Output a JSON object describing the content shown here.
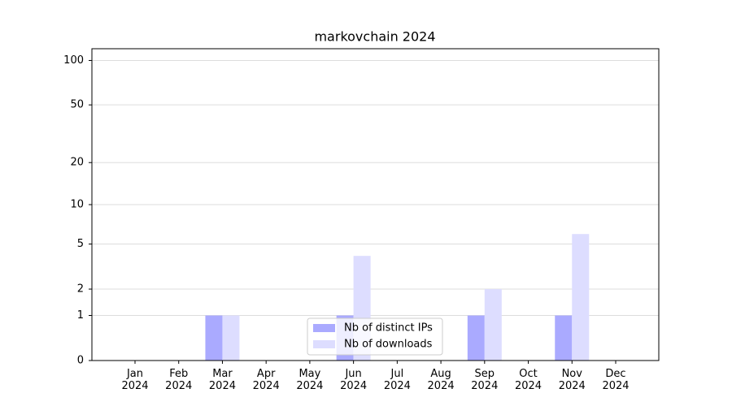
{
  "chart_data": {
    "type": "bar",
    "title": "markovchain 2024",
    "categories": [
      "Jan 2024",
      "Feb 2024",
      "Mar 2024",
      "Apr 2024",
      "May 2024",
      "Jun 2024",
      "Jul 2024",
      "Aug 2024",
      "Sep 2024",
      "Oct 2024",
      "Nov 2024",
      "Dec 2024"
    ],
    "series": [
      {
        "name": "Nb of distinct IPs",
        "color": "#aaaaff",
        "values": [
          0,
          0,
          1,
          0,
          0,
          1,
          0,
          0,
          1,
          0,
          1,
          0
        ]
      },
      {
        "name": "Nb of downloads",
        "color": "#ddddff",
        "values": [
          0,
          0,
          1,
          0,
          0,
          4,
          0,
          0,
          2,
          0,
          6,
          0
        ]
      }
    ],
    "yscale": "log1p",
    "ylim": [
      0,
      120
    ],
    "yticks": [
      0,
      1,
      2,
      5,
      10,
      20,
      50,
      100
    ],
    "grid": true,
    "legend": "lower center"
  }
}
